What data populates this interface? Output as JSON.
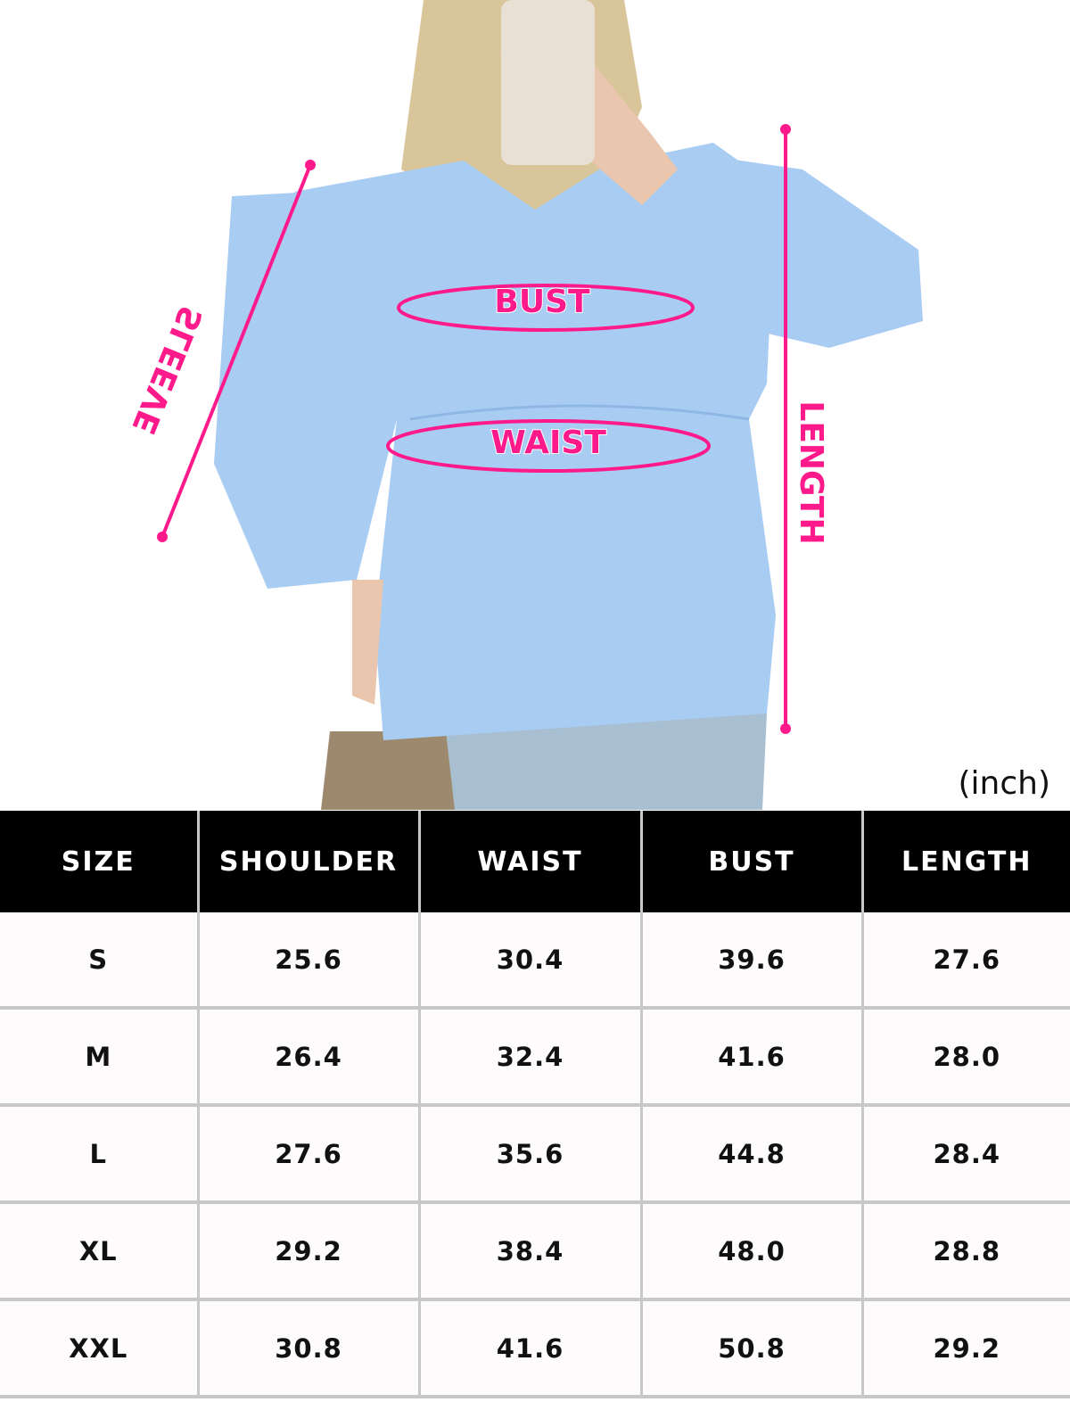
{
  "labels": {
    "sleeve": "SLEEVE",
    "bust": "BUST",
    "waist": "WAIST",
    "length": "LENGTH"
  },
  "unit": "(inch)",
  "colors": {
    "accent": "#ff1a8c",
    "garment": "#a9ccf3",
    "header_bg": "#000000"
  },
  "table": {
    "headers": [
      "SIZE",
      "SHOULDER",
      "WAIST",
      "BUST",
      "LENGTH"
    ],
    "rows": [
      [
        "S",
        "25.6",
        "30.4",
        "39.6",
        "27.6"
      ],
      [
        "M",
        "26.4",
        "32.4",
        "41.6",
        "28.0"
      ],
      [
        "L",
        "27.6",
        "35.6",
        "44.8",
        "28.4"
      ],
      [
        "XL",
        "29.2",
        "38.4",
        "48.0",
        "28.8"
      ],
      [
        "XXL",
        "30.8",
        "41.6",
        "50.8",
        "29.2"
      ]
    ]
  }
}
